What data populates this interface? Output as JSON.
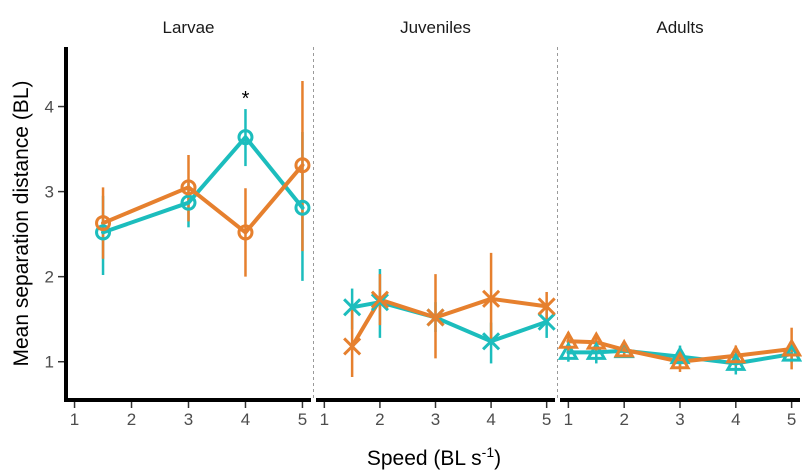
{
  "chart_data": {
    "type": "line",
    "ylabel": "Mean separation distance (BL)",
    "xlabel": {
      "main": "Speed (BL s",
      "sup": "-1",
      "close": ")"
    },
    "ylim": [
      0.55,
      4.7
    ],
    "xlim": [
      0.85,
      5.15
    ],
    "yticks": [
      1,
      2,
      3,
      4
    ],
    "ytick_labels": [
      "1",
      "2",
      "3",
      "4"
    ],
    "xticks": [
      1,
      2,
      3,
      4,
      5
    ],
    "xtick_labels": [
      "1",
      "2",
      "3",
      "4",
      "5"
    ],
    "colors": {
      "teal": "#1cbdbd",
      "orange": "#e6802e",
      "axis": "#000000",
      "divider": "#9a9a9a"
    },
    "panels": [
      {
        "title": "Larvae",
        "marker": "circle",
        "series": [
          {
            "name": "teal",
            "color": "#1cbdbd",
            "x": [
              1.5,
              3,
              4,
              5
            ],
            "y": [
              2.52,
              2.87,
              3.64,
              2.81
            ],
            "lo": [
              2.02,
              2.58,
              3.3,
              1.95
            ],
            "hi": [
              2.95,
              3.1,
              3.97,
              3.7
            ]
          },
          {
            "name": "orange",
            "color": "#e6802e",
            "x": [
              1.5,
              3,
              4,
              5
            ],
            "y": [
              2.63,
              3.05,
              2.52,
              3.31
            ],
            "lo": [
              2.21,
              2.65,
              2.0,
              2.3
            ],
            "hi": [
              3.05,
              3.43,
              3.04,
              4.3
            ]
          }
        ],
        "annotation": {
          "text": "*",
          "x": 4,
          "y": 4.1
        }
      },
      {
        "title": "Juveniles",
        "marker": "x",
        "series": [
          {
            "name": "teal",
            "color": "#1cbdbd",
            "x": [
              1.5,
              2,
              3,
              4,
              5
            ],
            "y": [
              1.64,
              1.7,
              1.52,
              1.24,
              1.47
            ],
            "lo": [
              1.38,
              1.28,
              1.35,
              0.98,
              1.28
            ],
            "hi": [
              1.86,
              2.09,
              1.7,
              1.46,
              1.66
            ]
          },
          {
            "name": "orange",
            "color": "#e6802e",
            "x": [
              1.5,
              2,
              3,
              4,
              5
            ],
            "y": [
              1.18,
              1.73,
              1.52,
              1.74,
              1.65
            ],
            "lo": [
              0.82,
              1.43,
              1.04,
              1.25,
              1.47
            ],
            "hi": [
              1.62,
              2.03,
              2.03,
              2.28,
              1.82
            ]
          }
        ]
      },
      {
        "title": "Adults",
        "marker": "triangle",
        "series": [
          {
            "name": "teal",
            "color": "#1cbdbd",
            "x": [
              1,
              1.5,
              2,
              3,
              4,
              5
            ],
            "y": [
              1.11,
              1.11,
              1.13,
              1.06,
              0.98,
              1.09
            ],
            "lo": [
              1.0,
              0.98,
              1.05,
              0.93,
              0.85,
              0.99
            ],
            "hi": [
              1.21,
              1.24,
              1.21,
              1.19,
              1.11,
              1.19
            ]
          },
          {
            "name": "orange",
            "color": "#e6802e",
            "x": [
              1,
              1.5,
              2,
              3,
              4,
              5
            ],
            "y": [
              1.24,
              1.23,
              1.14,
              1.0,
              1.07,
              1.15
            ],
            "lo": [
              1.13,
              1.13,
              1.06,
              0.88,
              0.95,
              0.91
            ],
            "hi": [
              1.35,
              1.33,
              1.22,
              1.12,
              1.19,
              1.4
            ]
          }
        ]
      }
    ]
  }
}
